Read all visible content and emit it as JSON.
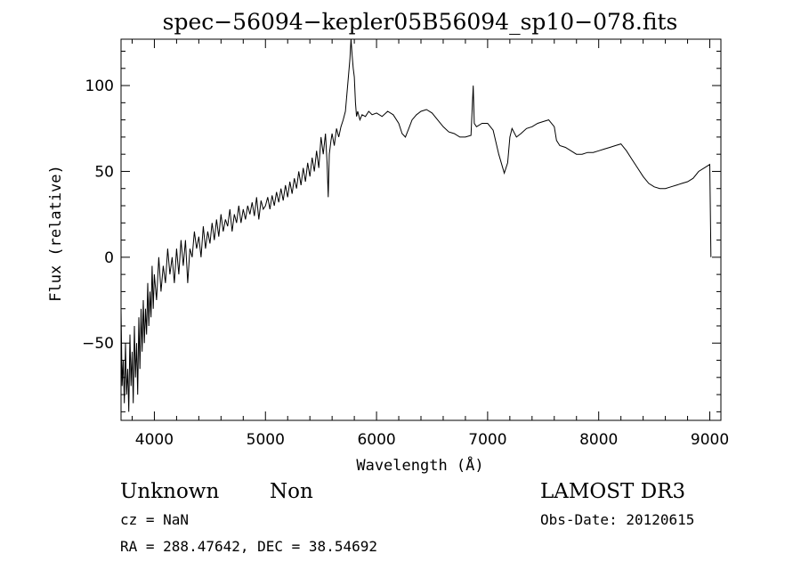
{
  "chart_data": {
    "type": "line",
    "title": "spec−56094−kepler05B56094_sp10−078.fits",
    "xlabel": "Wavelength (Å)",
    "ylabel": "Flux (relative)",
    "xlim": [
      3700,
      9100
    ],
    "ylim": [
      -95,
      127
    ],
    "xticks": [
      4000,
      5000,
      6000,
      7000,
      8000,
      9000
    ],
    "yticks": [
      -50,
      0,
      50,
      100
    ],
    "grid": false,
    "series": [
      {
        "points": [
          [
            3700,
            -30
          ],
          [
            3710,
            -75
          ],
          [
            3720,
            -60
          ],
          [
            3730,
            -85
          ],
          [
            3740,
            -50
          ],
          [
            3750,
            -80
          ],
          [
            3760,
            -65
          ],
          [
            3770,
            -90
          ],
          [
            3780,
            -45
          ],
          [
            3790,
            -75
          ],
          [
            3800,
            -55
          ],
          [
            3810,
            -85
          ],
          [
            3820,
            -40
          ],
          [
            3830,
            -70
          ],
          [
            3840,
            -50
          ],
          [
            3850,
            -80
          ],
          [
            3860,
            -35
          ],
          [
            3870,
            -65
          ],
          [
            3880,
            -30
          ],
          [
            3890,
            -55
          ],
          [
            3900,
            -25
          ],
          [
            3910,
            -50
          ],
          [
            3920,
            -30
          ],
          [
            3930,
            -45
          ],
          [
            3940,
            -15
          ],
          [
            3950,
            -40
          ],
          [
            3960,
            -20
          ],
          [
            3970,
            -35
          ],
          [
            3980,
            -5
          ],
          [
            3990,
            -30
          ],
          [
            4000,
            -10
          ],
          [
            4020,
            -25
          ],
          [
            4040,
            0
          ],
          [
            4060,
            -20
          ],
          [
            4080,
            -5
          ],
          [
            4100,
            -15
          ],
          [
            4120,
            5
          ],
          [
            4140,
            -10
          ],
          [
            4160,
            0
          ],
          [
            4180,
            -15
          ],
          [
            4200,
            5
          ],
          [
            4220,
            -10
          ],
          [
            4240,
            10
          ],
          [
            4260,
            -5
          ],
          [
            4280,
            10
          ],
          [
            4300,
            -15
          ],
          [
            4320,
            5
          ],
          [
            4340,
            0
          ],
          [
            4360,
            15
          ],
          [
            4380,
            5
          ],
          [
            4400,
            12
          ],
          [
            4420,
            0
          ],
          [
            4440,
            18
          ],
          [
            4460,
            5
          ],
          [
            4480,
            15
          ],
          [
            4500,
            8
          ],
          [
            4520,
            20
          ],
          [
            4540,
            10
          ],
          [
            4560,
            22
          ],
          [
            4580,
            12
          ],
          [
            4600,
            25
          ],
          [
            4620,
            15
          ],
          [
            4640,
            22
          ],
          [
            4660,
            18
          ],
          [
            4680,
            28
          ],
          [
            4700,
            15
          ],
          [
            4720,
            25
          ],
          [
            4740,
            20
          ],
          [
            4760,
            30
          ],
          [
            4780,
            20
          ],
          [
            4800,
            28
          ],
          [
            4820,
            22
          ],
          [
            4840,
            30
          ],
          [
            4860,
            25
          ],
          [
            4880,
            32
          ],
          [
            4900,
            24
          ],
          [
            4920,
            35
          ],
          [
            4940,
            22
          ],
          [
            4960,
            33
          ],
          [
            4980,
            28
          ],
          [
            5000,
            30
          ],
          [
            5020,
            35
          ],
          [
            5040,
            28
          ],
          [
            5060,
            36
          ],
          [
            5080,
            30
          ],
          [
            5100,
            38
          ],
          [
            5120,
            32
          ],
          [
            5140,
            40
          ],
          [
            5160,
            33
          ],
          [
            5180,
            42
          ],
          [
            5200,
            35
          ],
          [
            5220,
            44
          ],
          [
            5240,
            37
          ],
          [
            5260,
            46
          ],
          [
            5280,
            40
          ],
          [
            5300,
            50
          ],
          [
            5320,
            42
          ],
          [
            5340,
            52
          ],
          [
            5360,
            44
          ],
          [
            5380,
            55
          ],
          [
            5400,
            47
          ],
          [
            5420,
            58
          ],
          [
            5440,
            50
          ],
          [
            5460,
            62
          ],
          [
            5480,
            52
          ],
          [
            5500,
            70
          ],
          [
            5520,
            60
          ],
          [
            5540,
            72
          ],
          [
            5555,
            55
          ],
          [
            5565,
            35
          ],
          [
            5575,
            60
          ],
          [
            5590,
            68
          ],
          [
            5600,
            72
          ],
          [
            5620,
            65
          ],
          [
            5640,
            75
          ],
          [
            5660,
            70
          ],
          [
            5680,
            76
          ],
          [
            5700,
            80
          ],
          [
            5720,
            85
          ],
          [
            5740,
            100
          ],
          [
            5760,
            115
          ],
          [
            5770,
            127
          ],
          [
            5780,
            118
          ],
          [
            5790,
            110
          ],
          [
            5800,
            105
          ],
          [
            5810,
            90
          ],
          [
            5820,
            82
          ],
          [
            5830,
            85
          ],
          [
            5850,
            80
          ],
          [
            5870,
            83
          ],
          [
            5900,
            82
          ],
          [
            5930,
            85
          ],
          [
            5960,
            83
          ],
          [
            6000,
            84
          ],
          [
            6050,
            82
          ],
          [
            6100,
            85
          ],
          [
            6150,
            83
          ],
          [
            6200,
            78
          ],
          [
            6230,
            72
          ],
          [
            6260,
            70
          ],
          [
            6290,
            75
          ],
          [
            6320,
            80
          ],
          [
            6360,
            83
          ],
          [
            6400,
            85
          ],
          [
            6450,
            86
          ],
          [
            6500,
            84
          ],
          [
            6550,
            80
          ],
          [
            6600,
            76
          ],
          [
            6650,
            73
          ],
          [
            6700,
            72
          ],
          [
            6750,
            70
          ],
          [
            6800,
            70
          ],
          [
            6850,
            71
          ],
          [
            6870,
            100
          ],
          [
            6880,
            78
          ],
          [
            6900,
            76
          ],
          [
            6950,
            78
          ],
          [
            7000,
            78
          ],
          [
            7050,
            74
          ],
          [
            7100,
            60
          ],
          [
            7150,
            49
          ],
          [
            7180,
            55
          ],
          [
            7200,
            70
          ],
          [
            7220,
            75
          ],
          [
            7260,
            70
          ],
          [
            7300,
            72
          ],
          [
            7350,
            75
          ],
          [
            7400,
            76
          ],
          [
            7450,
            78
          ],
          [
            7500,
            79
          ],
          [
            7550,
            80
          ],
          [
            7600,
            76
          ],
          [
            7620,
            68
          ],
          [
            7650,
            65
          ],
          [
            7700,
            64
          ],
          [
            7750,
            62
          ],
          [
            7800,
            60
          ],
          [
            7850,
            60
          ],
          [
            7900,
            61
          ],
          [
            7950,
            61
          ],
          [
            8000,
            62
          ],
          [
            8050,
            63
          ],
          [
            8100,
            64
          ],
          [
            8150,
            65
          ],
          [
            8200,
            66
          ],
          [
            8250,
            62
          ],
          [
            8300,
            57
          ],
          [
            8350,
            52
          ],
          [
            8400,
            47
          ],
          [
            8450,
            43
          ],
          [
            8500,
            41
          ],
          [
            8550,
            40
          ],
          [
            8600,
            40
          ],
          [
            8650,
            41
          ],
          [
            8700,
            42
          ],
          [
            8750,
            43
          ],
          [
            8800,
            44
          ],
          [
            8850,
            46
          ],
          [
            8900,
            50
          ],
          [
            8950,
            52
          ],
          [
            9000,
            54
          ],
          [
            9010,
            0
          ]
        ]
      }
    ]
  },
  "footer": {
    "object_class": "Unknown",
    "object_subclass": "Non",
    "survey": "LAMOST DR3",
    "cz": "cz = NaN",
    "obs_date": "Obs-Date: 20120615",
    "coords": "RA = 288.47642, DEC =  38.54692"
  }
}
